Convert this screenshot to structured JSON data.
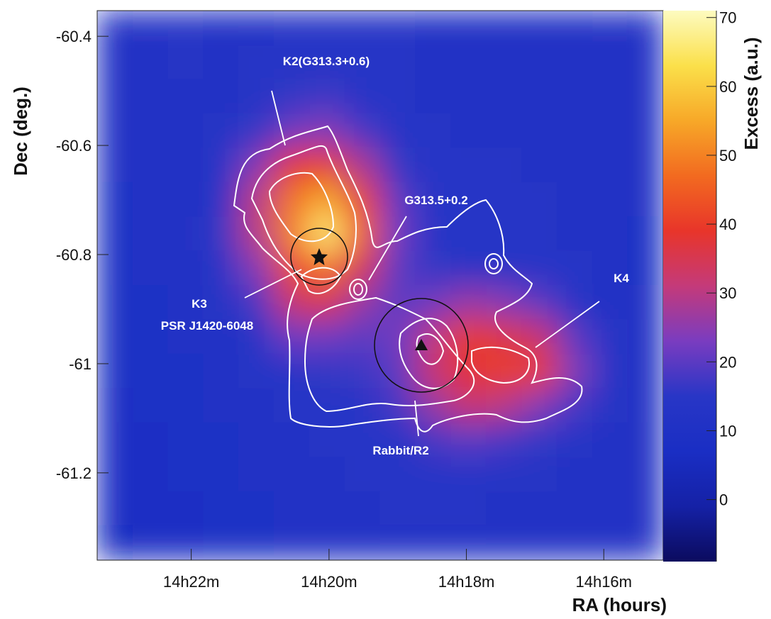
{
  "chart_data": {
    "type": "heatmap",
    "x_label": "RA (hours)",
    "y_label": "Dec (deg.)",
    "colorbar_label": "Excess (a.u.)",
    "xlim": [
      14.3895,
      14.2523
    ],
    "ylim": [
      -61.36,
      -60.353
    ],
    "xticks": [
      {
        "value": 14.3667,
        "label": "14h22m"
      },
      {
        "value": 14.3333,
        "label": "14h20m"
      },
      {
        "value": 14.3,
        "label": "14h18m"
      },
      {
        "value": 14.2667,
        "label": "14h16m"
      }
    ],
    "yticks": [
      -60.4,
      -60.6,
      -60.8,
      -61,
      -61.2
    ],
    "zlim": [
      -9,
      71
    ],
    "zticks": [
      0,
      10,
      20,
      30,
      40,
      50,
      60,
      70
    ],
    "colormap": [
      "#0b0b5e",
      "#1521a6",
      "#1a2ec4",
      "#2836c6",
      "#7a3cc0",
      "#c43a7a",
      "#e8352a",
      "#f26a20",
      "#f7a828",
      "#fbe04a",
      "#fdfbc0"
    ],
    "z": [
      [
        12,
        13,
        13,
        12,
        12,
        13,
        14,
        13,
        13,
        12,
        11,
        12,
        12,
        12,
        13,
        12
      ],
      [
        12,
        12,
        13,
        12,
        13,
        14,
        15,
        14,
        13,
        12,
        12,
        11,
        12,
        12,
        12,
        12
      ],
      [
        11,
        12,
        12,
        12,
        14,
        16,
        17,
        15,
        13,
        12,
        12,
        12,
        11,
        12,
        12,
        11
      ],
      [
        11,
        12,
        12,
        13,
        16,
        22,
        24,
        18,
        14,
        13,
        12,
        12,
        12,
        11,
        11,
        11
      ],
      [
        11,
        11,
        12,
        14,
        24,
        38,
        40,
        28,
        16,
        13,
        13,
        13,
        12,
        12,
        11,
        11
      ],
      [
        10,
        11,
        12,
        15,
        30,
        48,
        55,
        40,
        20,
        14,
        13,
        13,
        13,
        12,
        11,
        11
      ],
      [
        10,
        11,
        12,
        16,
        30,
        50,
        66,
        45,
        22,
        15,
        14,
        14,
        13,
        12,
        11,
        10
      ],
      [
        10,
        11,
        12,
        15,
        24,
        42,
        48,
        35,
        20,
        16,
        15,
        15,
        14,
        13,
        11,
        10
      ],
      [
        10,
        10,
        11,
        13,
        18,
        32,
        36,
        26,
        20,
        22,
        26,
        24,
        20,
        15,
        12,
        11
      ],
      [
        9,
        10,
        11,
        12,
        15,
        22,
        22,
        20,
        22,
        30,
        40,
        36,
        32,
        20,
        13,
        11
      ],
      [
        9,
        9,
        10,
        11,
        13,
        15,
        16,
        17,
        20,
        32,
        38,
        40,
        40,
        24,
        14,
        11
      ],
      [
        8,
        9,
        10,
        11,
        12,
        13,
        14,
        15,
        18,
        26,
        32,
        30,
        24,
        18,
        13,
        11
      ],
      [
        8,
        8,
        9,
        10,
        11,
        12,
        13,
        14,
        15,
        18,
        20,
        18,
        16,
        14,
        12,
        11
      ],
      [
        7,
        8,
        9,
        10,
        11,
        12,
        12,
        13,
        14,
        15,
        15,
        14,
        13,
        12,
        11,
        11
      ],
      [
        7,
        7,
        8,
        9,
        10,
        11,
        12,
        12,
        13,
        13,
        13,
        12,
        12,
        11,
        11,
        11
      ],
      [
        6,
        7,
        8,
        9,
        10,
        11,
        11,
        12,
        12,
        12,
        12,
        12,
        11,
        11,
        11,
        11
      ]
    ],
    "annotations": {
      "k2": "K2(G313.3+0.6)",
      "g313": "G313.5+0.2",
      "k3": "K3",
      "psr": "PSR J1420-6048",
      "k4": "K4",
      "rabbit": "Rabbit/R2"
    }
  }
}
